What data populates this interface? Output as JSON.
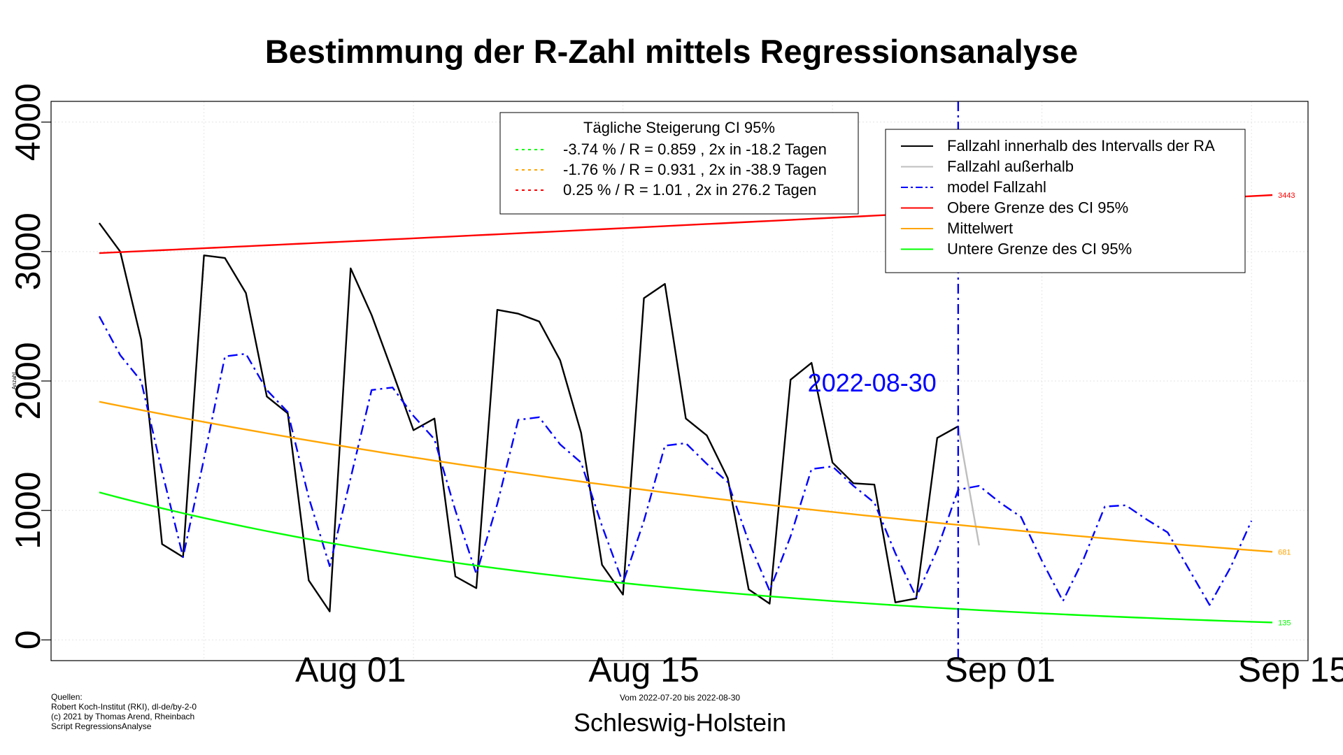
{
  "chart_data": {
    "type": "line",
    "title": "Bestimmung der R-Zahl mittels Regressionsanalyse",
    "subtitle": "Schleswig-Holstein",
    "ylabel": "Anzahl",
    "period_note": "Vom 2022-07-20 bis 2022-08-30",
    "sources": [
      "Quellen:",
      "Robert Koch-Institut (RKI), dl-de/by-2-0",
      "(c) 2021 by Thomas Arend, Rheinbach",
      "Script RegressionsAnalyse"
    ],
    "x_start_date": "2022-07-20",
    "xlim_days": [
      -2.3,
      57.7
    ],
    "ylim": [
      -160,
      4160
    ],
    "y_ticks": [
      0,
      1000,
      2000,
      3000,
      4000
    ],
    "x_ticks": [
      {
        "label": "Aug 01",
        "day": 12
      },
      {
        "label": "Aug 15",
        "day": 26
      },
      {
        "label": "Sep 01",
        "day": 43
      },
      {
        "label": "Sep 15",
        "day": 57
      }
    ],
    "grid": true,
    "vline": {
      "day": 41,
      "label": "2022-08-30",
      "color": "#0000ff"
    },
    "series": [
      {
        "name": "Fallzahl innerhalb des Intervalls der RA",
        "color": "#000000",
        "style": "solid",
        "start_day": 0,
        "values": [
          3220,
          3000,
          2320,
          740,
          640,
          2970,
          2950,
          2680,
          1880,
          1750,
          460,
          220,
          2870,
          2510,
          2070,
          1620,
          1710,
          490,
          400,
          2550,
          2520,
          2460,
          2160,
          1600,
          580,
          350,
          2640,
          2750,
          1710,
          1580,
          1250,
          390,
          280,
          2010,
          2140,
          1370,
          1210,
          1200,
          290,
          320,
          1560,
          1650
        ]
      },
      {
        "name": "Fallzahl außerhalb",
        "color": "#bebebe",
        "style": "solid",
        "start_day": 41,
        "values": [
          1650,
          730
        ]
      },
      {
        "name": "model Fallzahl",
        "color": "#0000ff",
        "style": "dashdot",
        "start_day": 0,
        "values": [
          2500,
          2200,
          2000,
          1300,
          640,
          1400,
          2190,
          2210,
          1930,
          1760,
          1100,
          570,
          1250,
          1930,
          1950,
          1730,
          1550,
          1000,
          510,
          1050,
          1700,
          1720,
          1510,
          1370,
          880,
          440,
          920,
          1500,
          1520,
          1360,
          1220,
          760,
          380,
          800,
          1320,
          1340,
          1190,
          1060,
          670,
          330,
          700,
          1160,
          1190,
          1060,
          950,
          610,
          300,
          630,
          1030,
          1040,
          930,
          830,
          550,
          270,
          560,
          920
        ]
      },
      {
        "name": "Obere Grenze des CI 95%",
        "color": "#ff0000",
        "style": "solid",
        "curve": {
          "start_day": 0,
          "end_day": 56,
          "start_value": 2988,
          "daily_factor": 1.0025
        },
        "end_label": "3443"
      },
      {
        "name": "Mittelwert",
        "color": "#ffa500",
        "style": "solid",
        "curve": {
          "start_day": 0,
          "end_day": 56,
          "start_value": 1840,
          "daily_factor": 0.9824
        },
        "end_label": "681"
      },
      {
        "name": "Untere Grenze des CI 95%",
        "color": "#00ff00",
        "style": "solid",
        "curve": {
          "start_day": 0,
          "end_day": 56,
          "start_value": 1140,
          "daily_factor": 0.9626
        },
        "end_label": "135"
      }
    ],
    "legend_ci": {
      "title": "Tägliche Steigerung CI  95%",
      "entries": [
        {
          "text": "-3.74 % / R = 0.859 , 2x in -18.2 Tagen",
          "color": "#00ff00"
        },
        {
          "text": "-1.76 % / R = 0.931 , 2x in -38.9 Tagen",
          "color": "#ffa500"
        },
        {
          "text": "0.25 % / R = 1.01 , 2x in 276.2 Tagen",
          "color": "#ff0000"
        }
      ]
    },
    "legend_series_placement": "top-right",
    "legend_ci_placement": "top-center"
  }
}
